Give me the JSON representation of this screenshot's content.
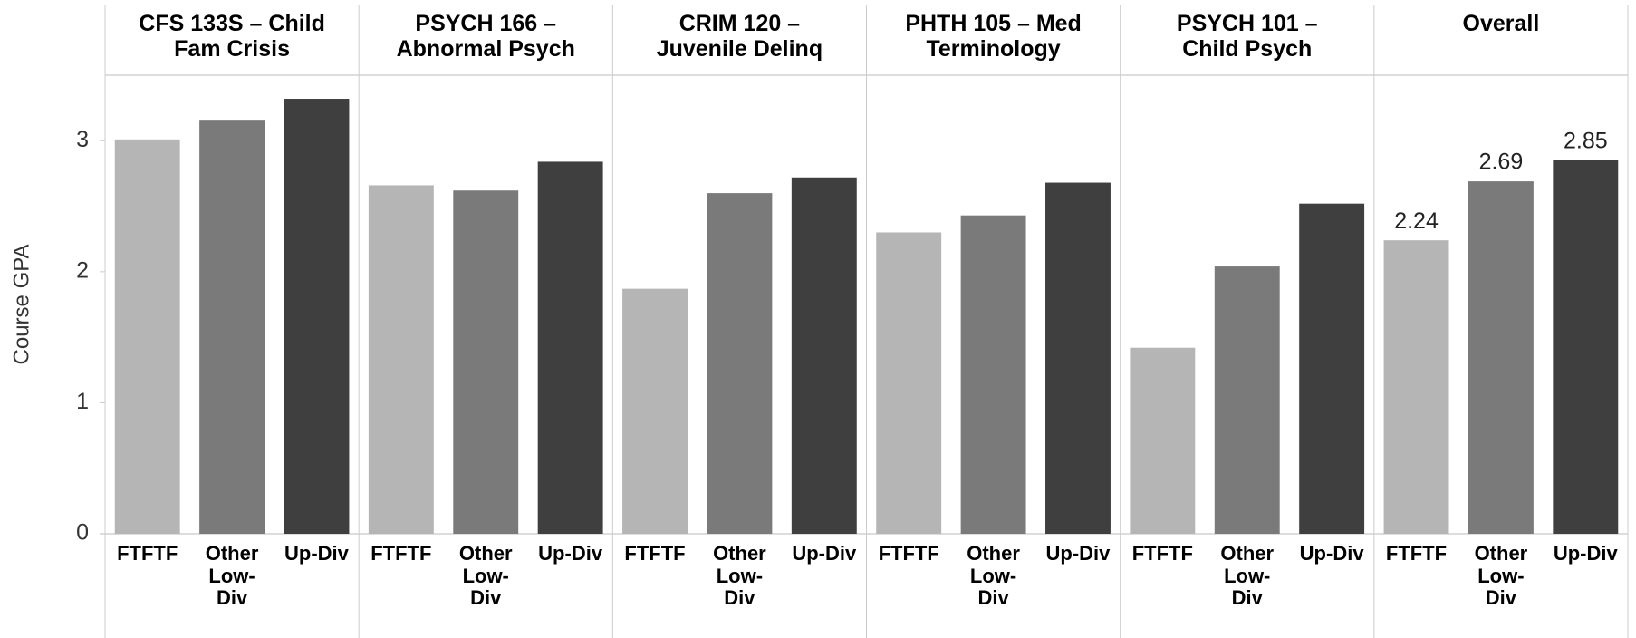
{
  "chart_data": {
    "type": "bar",
    "y_label": "Course GPA",
    "ylim": [
      0,
      3.5
    ],
    "yticks": [
      0,
      1,
      2,
      3
    ],
    "categories": [
      "FTFTF",
      "Other\nLow-\nDiv",
      "Up-Div"
    ],
    "colors": [
      "#b5b5b5",
      "#7a7a7a",
      "#3f3f3f"
    ],
    "panels": [
      {
        "title": "CFS 133S – Child\nFam Crisis",
        "values": [
          3.01,
          3.16,
          3.32
        ]
      },
      {
        "title": "PSYCH 166 –\nAbnormal Psych",
        "values": [
          2.66,
          2.62,
          2.84
        ]
      },
      {
        "title": "CRIM 120 –\nJuvenile Delinq",
        "values": [
          1.87,
          2.6,
          2.72
        ]
      },
      {
        "title": "PHTH 105 – Med\nTerminology",
        "values": [
          2.3,
          2.43,
          2.68
        ]
      },
      {
        "title": "PSYCH 101 –\nChild Psych",
        "values": [
          1.42,
          2.04,
          2.52
        ]
      },
      {
        "title": "Overall",
        "values": [
          2.24,
          2.69,
          2.85
        ],
        "data_labels": true
      }
    ]
  }
}
